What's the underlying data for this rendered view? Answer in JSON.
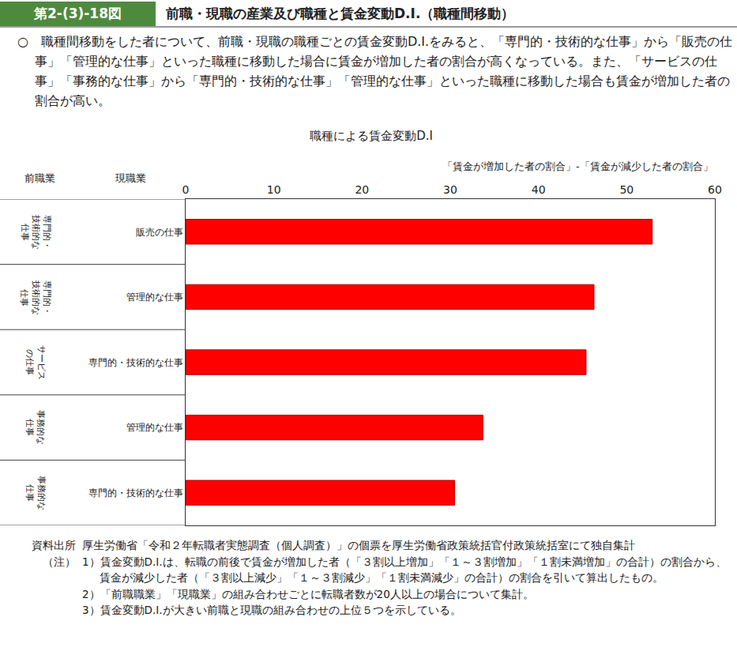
{
  "header": {
    "figure_number": "第2-(3)-18図",
    "title": "前職・現職の産業及び職種と賃金変動D.I.（職種間移動）"
  },
  "summary": "○　職種間移動をした者について、前職・現職の職種ごとの賃金変動D.I.をみると、「専門的・技術的な仕事」から「販売の仕事」「管理的な仕事」といった職種に移動した場合に賃金が増加した者の割合が高くなっている。また、「サービスの仕事」「事務的な仕事」から「専門的・技術的な仕事」「管理的な仕事」といった職種に移動した場合も賃金が増加した者の割合が高い。",
  "chart_data": {
    "type": "bar",
    "title": "職種による賃金変動D.I",
    "orientation": "horizontal",
    "x_label": "「賃金が増加した者の割合」-「賃金が減少した者の割合」",
    "group_label": "前職業",
    "category_label": "現職業",
    "groups": [
      "専門的・技術的な仕事",
      "専門的・技術的な仕事",
      "サービスの仕事",
      "事務的な仕事",
      "事務的な仕事"
    ],
    "categories": [
      "販売の仕事",
      "管理的な仕事",
      "専門的・技術的な仕事",
      "管理的な仕事",
      "専門的・技術的な仕事"
    ],
    "values": [
      52.9,
      46.3,
      45.4,
      33.7,
      30.5
    ],
    "color": "#ff0000",
    "xlim": [
      0,
      60
    ],
    "xticks": [
      0,
      10,
      20,
      30,
      40,
      50,
      60
    ],
    "grid": false
  },
  "source": {
    "label": "資料出所",
    "text": "厚生労働省「令和２年転職者実態調査（個人調査）」の個票を厚生労働省政策統括官付政策統括室にて独自集計"
  },
  "notes": {
    "label": "（注）",
    "items": [
      "1）賃金変動D.I.は、転職の前後で賃金が増加した者（「３割以上増加」「１～３割増加」「１割未満増加」の合計）の割合から、賃金が減少した者（「３割以上減少」「１～３割減少」「１割未満減少」の合計）の割合を引いて算出したもの。",
      "2）「前職職業」「現職業」の組み合わせごとに転職者数が20人以上の場合について集計。",
      "3）賃金変動D.I.が大きい前職と現職の組み合わせの上位５つを示している。"
    ]
  }
}
